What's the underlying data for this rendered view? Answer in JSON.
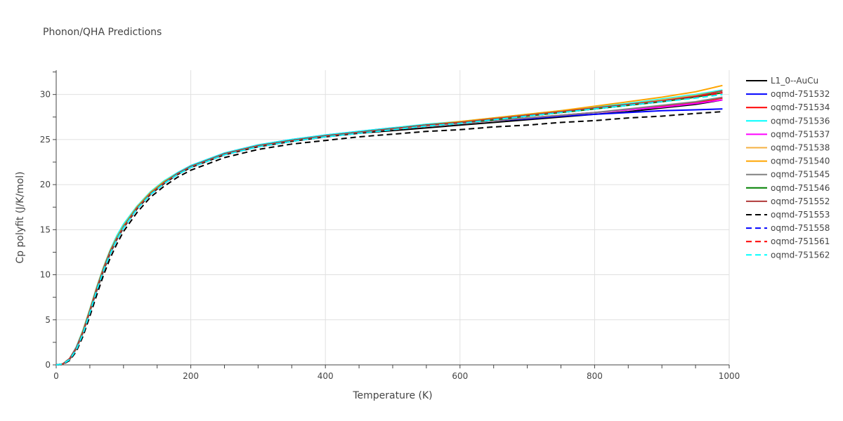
{
  "chart_data": {
    "type": "line",
    "title": "Phonon/QHA Predictions",
    "xlabel": "Temperature (K)",
    "ylabel": "Cp polyfit (J/K/mol)",
    "xlim": [
      0,
      1000
    ],
    "ylim": [
      0,
      32.7
    ],
    "xticks": [
      0,
      200,
      400,
      600,
      800,
      1000
    ],
    "yticks": [
      0,
      5,
      10,
      15,
      20,
      25,
      30
    ],
    "grid": true,
    "legend_position": "right",
    "x": [
      0,
      10,
      20,
      30,
      40,
      50,
      60,
      70,
      80,
      90,
      100,
      120,
      140,
      160,
      180,
      200,
      250,
      300,
      350,
      400,
      450,
      500,
      550,
      600,
      650,
      700,
      750,
      800,
      850,
      900,
      950,
      990
    ],
    "series": [
      {
        "name": "L1_0--AuCu",
        "color": "#000000",
        "dash": "solid",
        "values": [
          0,
          0.1,
          0.6,
          1.8,
          3.6,
          5.9,
          8.2,
          10.4,
          12.3,
          13.9,
          15.2,
          17.3,
          18.9,
          20.1,
          21.1,
          21.9,
          23.3,
          24.2,
          24.8,
          25.3,
          25.7,
          26.0,
          26.3,
          26.6,
          26.9,
          27.2,
          27.5,
          27.8,
          28.1,
          28.5,
          28.9,
          29.4
        ]
      },
      {
        "name": "oqmd-751532",
        "color": "#0000ff",
        "dash": "solid",
        "values": [
          0,
          0.1,
          0.7,
          1.9,
          3.8,
          6.1,
          8.5,
          10.7,
          12.6,
          14.2,
          15.5,
          17.5,
          19.1,
          20.3,
          21.3,
          22.1,
          23.5,
          24.4,
          25.0,
          25.5,
          25.9,
          26.3,
          26.6,
          26.8,
          27.1,
          27.3,
          27.6,
          27.8,
          28.0,
          28.2,
          28.3,
          28.4
        ]
      },
      {
        "name": "oqmd-751534",
        "color": "#ff0000",
        "dash": "solid",
        "values": [
          0,
          0.1,
          0.7,
          1.9,
          3.7,
          6.0,
          8.4,
          10.6,
          12.5,
          14.0,
          15.3,
          17.4,
          19.0,
          20.2,
          21.2,
          22.0,
          23.4,
          24.3,
          24.9,
          25.4,
          25.8,
          26.2,
          26.5,
          26.8,
          27.1,
          27.4,
          27.7,
          28.0,
          28.3,
          28.7,
          29.1,
          29.6
        ]
      },
      {
        "name": "oqmd-751536",
        "color": "#00ffff",
        "dash": "solid",
        "values": [
          0,
          0.1,
          0.7,
          2.0,
          3.9,
          6.2,
          8.6,
          10.8,
          12.7,
          14.3,
          15.6,
          17.6,
          19.2,
          20.4,
          21.3,
          22.1,
          23.5,
          24.4,
          25.0,
          25.5,
          25.9,
          26.3,
          26.7,
          27.0,
          27.4,
          27.8,
          28.2,
          28.6,
          29.0,
          29.5,
          30.0,
          30.5
        ]
      },
      {
        "name": "oqmd-751537",
        "color": "#ff00ff",
        "dash": "solid",
        "values": [
          0,
          0.1,
          0.7,
          1.9,
          3.7,
          6.0,
          8.4,
          10.6,
          12.5,
          14.0,
          15.3,
          17.4,
          19.0,
          20.2,
          21.2,
          22.0,
          23.4,
          24.3,
          24.9,
          25.4,
          25.8,
          26.2,
          26.5,
          26.8,
          27.1,
          27.4,
          27.7,
          28.0,
          28.3,
          28.6,
          29.0,
          29.4
        ]
      },
      {
        "name": "oqmd-751538",
        "color": "#f5b041",
        "dash": "solid",
        "values": [
          0,
          0.1,
          0.7,
          1.9,
          3.8,
          6.1,
          8.5,
          10.7,
          12.6,
          14.1,
          15.4,
          17.5,
          19.1,
          20.3,
          21.2,
          22.0,
          23.4,
          24.3,
          24.9,
          25.4,
          25.8,
          26.2,
          26.6,
          26.9,
          27.3,
          27.7,
          28.1,
          28.5,
          28.9,
          29.4,
          29.9,
          30.4
        ]
      },
      {
        "name": "oqmd-751540",
        "color": "#ffa500",
        "dash": "solid",
        "values": [
          0,
          0.1,
          0.7,
          1.9,
          3.8,
          6.1,
          8.5,
          10.7,
          12.6,
          14.1,
          15.4,
          17.5,
          19.1,
          20.3,
          21.2,
          22.0,
          23.4,
          24.3,
          24.9,
          25.4,
          25.8,
          26.2,
          26.6,
          27.0,
          27.4,
          27.8,
          28.2,
          28.7,
          29.2,
          29.7,
          30.3,
          31.0
        ]
      },
      {
        "name": "oqmd-751545",
        "color": "#808080",
        "dash": "solid",
        "values": [
          0,
          0.1,
          0.6,
          1.8,
          3.6,
          5.9,
          8.3,
          10.5,
          12.4,
          14.0,
          15.3,
          17.4,
          19.0,
          20.2,
          21.2,
          22.0,
          23.4,
          24.3,
          24.9,
          25.4,
          25.8,
          26.2,
          26.5,
          26.8,
          27.1,
          27.4,
          27.7,
          28.0,
          28.4,
          28.8,
          29.2,
          29.7
        ]
      },
      {
        "name": "oqmd-751546",
        "color": "#008000",
        "dash": "solid",
        "values": [
          0,
          0.1,
          0.7,
          1.9,
          3.7,
          6.0,
          8.4,
          10.6,
          12.5,
          14.0,
          15.3,
          17.4,
          19.0,
          20.2,
          21.2,
          22.0,
          23.4,
          24.3,
          24.9,
          25.4,
          25.8,
          26.2,
          26.6,
          26.9,
          27.2,
          27.6,
          28.0,
          28.4,
          28.8,
          29.2,
          29.7,
          30.2
        ]
      },
      {
        "name": "oqmd-751552",
        "color": "#b03a3a",
        "dash": "solid",
        "values": [
          0,
          0.1,
          0.7,
          1.9,
          3.7,
          6.0,
          8.4,
          10.6,
          12.5,
          14.0,
          15.3,
          17.4,
          19.0,
          20.2,
          21.2,
          22.0,
          23.4,
          24.3,
          24.9,
          25.4,
          25.8,
          26.2,
          26.6,
          26.9,
          27.3,
          27.7,
          28.1,
          28.5,
          28.9,
          29.3,
          29.8,
          30.4
        ]
      },
      {
        "name": "oqmd-751553",
        "color": "#000000",
        "dash": "dash",
        "values": [
          0,
          0.05,
          0.5,
          1.5,
          3.2,
          5.4,
          7.7,
          9.9,
          11.8,
          13.4,
          14.8,
          16.9,
          18.6,
          19.8,
          20.8,
          21.6,
          23.0,
          23.9,
          24.5,
          24.9,
          25.3,
          25.6,
          25.9,
          26.1,
          26.4,
          26.6,
          26.9,
          27.1,
          27.4,
          27.6,
          27.9,
          28.1
        ]
      },
      {
        "name": "oqmd-751558",
        "color": "#0000ff",
        "dash": "dash",
        "values": [
          0,
          0.1,
          0.6,
          1.7,
          3.5,
          5.8,
          8.2,
          10.4,
          12.3,
          13.9,
          15.2,
          17.3,
          18.9,
          20.1,
          21.1,
          21.9,
          23.3,
          24.2,
          24.8,
          25.3,
          25.7,
          26.1,
          26.5,
          26.8,
          27.2,
          27.6,
          28.0,
          28.4,
          28.8,
          29.2,
          29.7,
          30.2
        ]
      },
      {
        "name": "oqmd-751561",
        "color": "#ff0000",
        "dash": "dash",
        "values": [
          0,
          0.1,
          0.6,
          1.7,
          3.5,
          5.8,
          8.2,
          10.4,
          12.3,
          13.9,
          15.2,
          17.3,
          18.9,
          20.1,
          21.1,
          21.9,
          23.3,
          24.2,
          24.8,
          25.3,
          25.7,
          26.1,
          26.5,
          26.8,
          27.2,
          27.6,
          28.0,
          28.4,
          28.8,
          29.2,
          29.7,
          30.2
        ]
      },
      {
        "name": "oqmd-751562",
        "color": "#00ffff",
        "dash": "dash",
        "values": [
          0,
          0.1,
          0.6,
          1.7,
          3.5,
          5.8,
          8.2,
          10.4,
          12.3,
          13.9,
          15.2,
          17.3,
          18.9,
          20.1,
          21.1,
          21.9,
          23.3,
          24.2,
          24.8,
          25.3,
          25.7,
          26.1,
          26.5,
          26.8,
          27.2,
          27.6,
          28.0,
          28.4,
          28.8,
          29.2,
          29.6,
          30.0
        ]
      }
    ]
  }
}
